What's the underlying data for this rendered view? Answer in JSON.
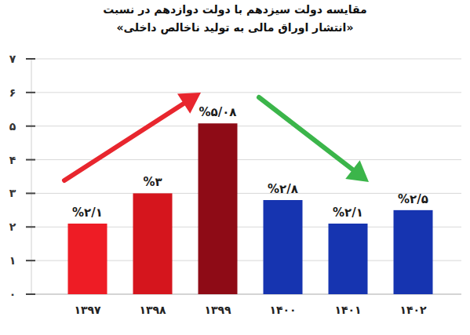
{
  "chart_data": {
    "type": "bar",
    "title": "مقایسه دولت سیزدهم با دولت دوازدهم در نسبت",
    "subtitle": "«انتشار اوراق مالی به تولید ناخالص داخلی»",
    "categories": [
      "۱۳۹۷",
      "۱۳۹۸",
      "۱۳۹۹",
      "۱۴۰۰",
      "۱۴۰۱",
      "۱۴۰۲"
    ],
    "values": [
      2.1,
      3,
      5.08,
      2.8,
      2.1,
      2.5
    ],
    "value_labels": [
      "%۲/۱",
      "%۳",
      "%۵/۰۸",
      "%۲/۸",
      "%۲/۱",
      "%۲/۵"
    ],
    "colors": [
      "#ee1c25",
      "#d5151d",
      "#8e0b16",
      "#1634b0",
      "#1634b0",
      "#1634b0"
    ],
    "ylim": [
      0,
      7
    ],
    "yticks": [
      {
        "value": 0,
        "label": "۰"
      },
      {
        "value": 1,
        "label": "۱"
      },
      {
        "value": 2,
        "label": "۲"
      },
      {
        "value": 3,
        "label": "۳"
      },
      {
        "value": 4,
        "label": "۴"
      },
      {
        "value": 5,
        "label": "۵"
      },
      {
        "value": 6,
        "label": "۶"
      },
      {
        "value": 7,
        "label": "۷"
      }
    ],
    "grid": true,
    "data_labels": true
  }
}
